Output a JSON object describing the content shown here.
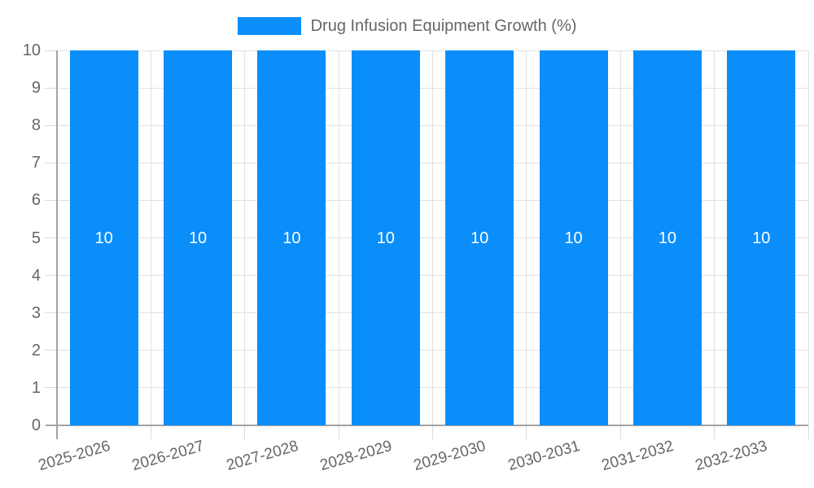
{
  "chart_data": {
    "type": "bar",
    "categories": [
      "2025-2026",
      "2026-2027",
      "2027-2028",
      "2028-2029",
      "2029-2030",
      "2030-2031",
      "2031-2032",
      "2032-2033"
    ],
    "values": [
      10,
      10,
      10,
      10,
      10,
      10,
      10,
      10
    ],
    "bar_value_labels": [
      "10",
      "10",
      "10",
      "10",
      "10",
      "10",
      "10",
      "10"
    ],
    "legend_label": "Drug Infusion Equipment Growth (%)",
    "legend_position": "top",
    "xlabel": "",
    "ylabel": "",
    "ylim": [
      0,
      10
    ],
    "y_ticks": [
      0,
      1,
      2,
      3,
      4,
      5,
      6,
      7,
      8,
      9,
      10
    ],
    "grid": true,
    "colors": {
      "bar": "#0a8ef9",
      "axis": "#a3a3a3",
      "grid": "#e2e2e2",
      "tick": "#dcdcdc",
      "tick_label": "#666666",
      "bar_label": "#ffffff",
      "legend_text": "#666666"
    }
  }
}
